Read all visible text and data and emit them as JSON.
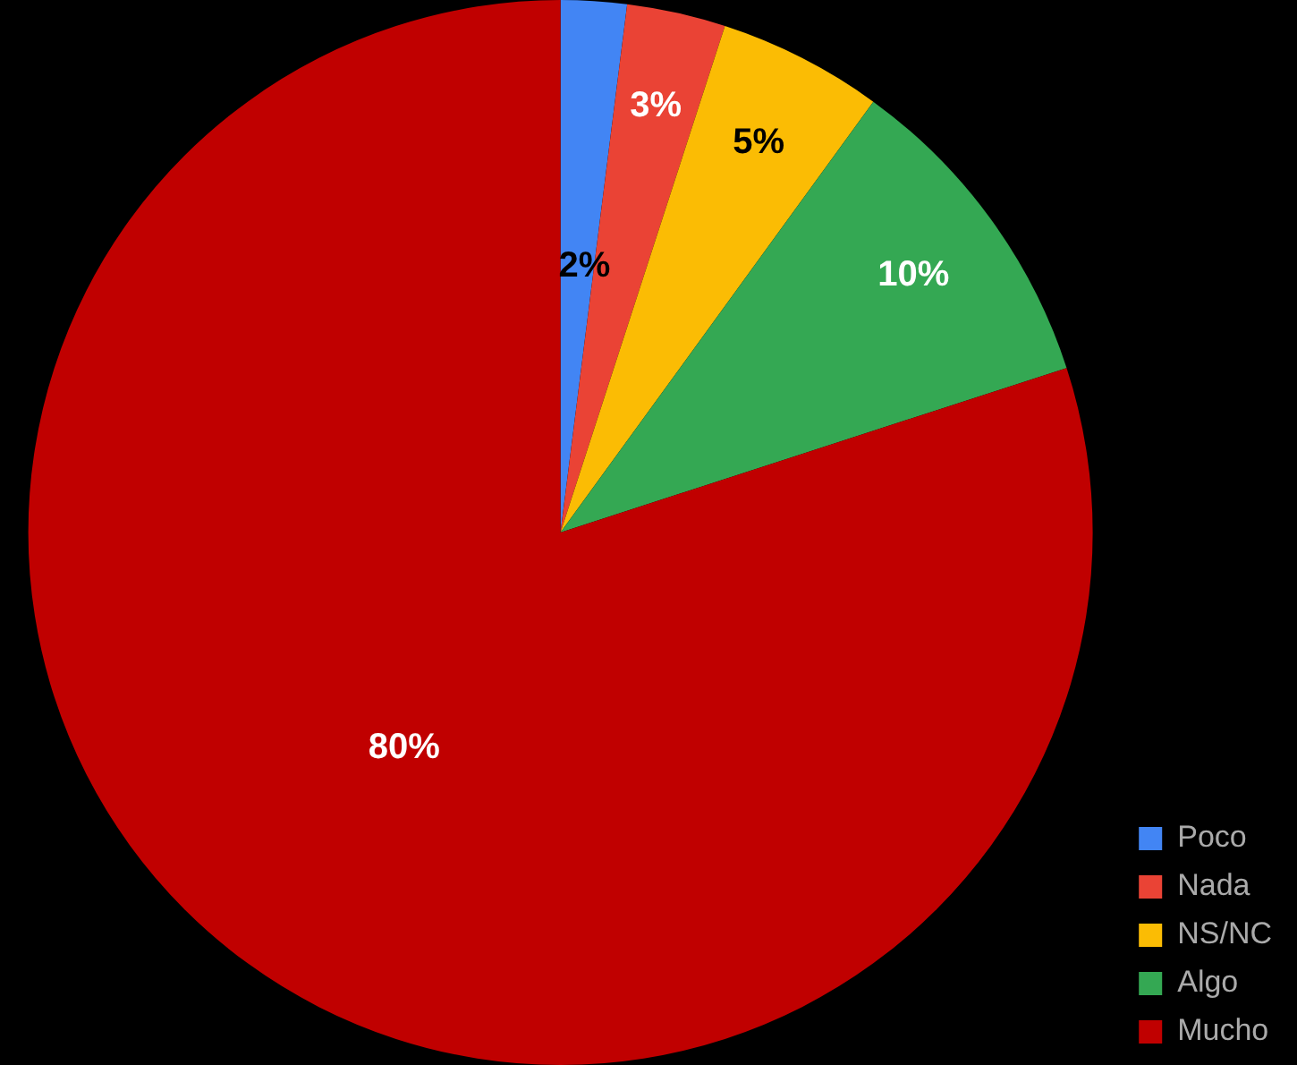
{
  "chart_data": {
    "type": "pie",
    "categories": [
      "Poco",
      "Nada",
      "NS/NC",
      "Algo",
      "Mucho"
    ],
    "values": [
      2,
      3,
      5,
      10,
      80
    ],
    "colors": [
      "#4285f4",
      "#ea4335",
      "#fbbc04",
      "#34a853",
      "#c00000"
    ],
    "value_labels": [
      "2%",
      "3%",
      "5%",
      "10%",
      "80%"
    ],
    "legend": "bottom right"
  }
}
